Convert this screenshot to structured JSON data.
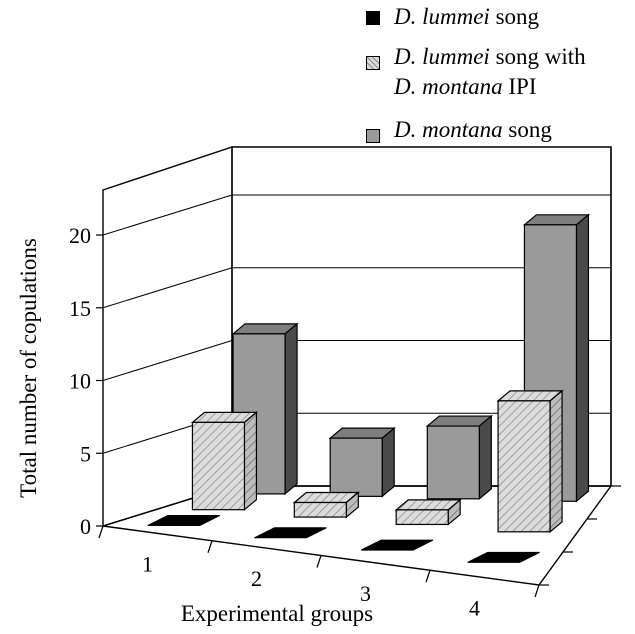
{
  "chart_data": {
    "type": "bar",
    "title": "",
    "xlabel": "Experimental groups",
    "ylabel": "Total number of copulations",
    "categories": [
      "1",
      "2",
      "3",
      "4"
    ],
    "y_ticks": [
      "0",
      "5",
      "10",
      "15",
      "20"
    ],
    "ylim": [
      0,
      20
    ],
    "grid": true,
    "legend_position": "top-right",
    "series": [
      {
        "name": "D. lummei song",
        "name_parts": [
          {
            "text": "D. lummei",
            "italic": true
          },
          {
            "text": " song",
            "italic": false
          }
        ],
        "name_parts_line2": [],
        "color": "#000000",
        "pattern": "solid",
        "values": [
          0,
          0,
          0,
          0
        ]
      },
      {
        "name": "D. lummei song with D. montana IPI",
        "name_parts": [
          {
            "text": "D. lummei",
            "italic": true
          },
          {
            "text": " song with",
            "italic": false
          }
        ],
        "name_parts_line2": [
          {
            "text": "D. montana",
            "italic": true
          },
          {
            "text": " IPI",
            "italic": false
          }
        ],
        "color": "#d6d6d6",
        "pattern": "hatched",
        "values": [
          6,
          1,
          1,
          9
        ]
      },
      {
        "name": "D. montana song",
        "name_parts": [
          {
            "text": "D. montana",
            "italic": true
          },
          {
            "text": " song",
            "italic": false
          }
        ],
        "name_parts_line2": [],
        "color": "#9a9a9a",
        "pattern": "solid",
        "values": [
          11,
          4,
          5,
          19
        ]
      }
    ]
  }
}
